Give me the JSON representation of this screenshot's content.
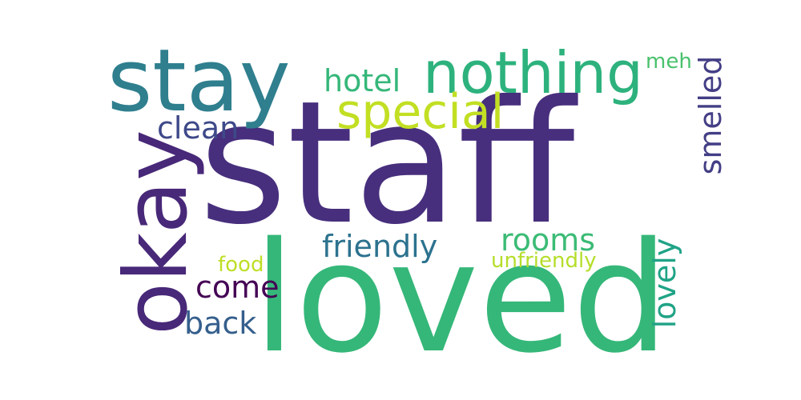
{
  "words": {
    "staff": {
      "text": "staff",
      "color": "#472f7d"
    },
    "loved": {
      "text": "loved",
      "color": "#35b779"
    },
    "stay": {
      "text": "stay",
      "color": "#2f7f8e"
    },
    "okay": {
      "text": "okay",
      "color": "#482878"
    },
    "nothing": {
      "text": "nothing",
      "color": "#2db27d"
    },
    "special": {
      "text": "special",
      "color": "#c2df23"
    },
    "hotel": {
      "text": "hotel",
      "color": "#35b779"
    },
    "meh": {
      "text": "meh",
      "color": "#4ac16d"
    },
    "smelled": {
      "text": "smelled",
      "color": "#433e85"
    },
    "clean": {
      "text": "clean",
      "color": "#3e4989"
    },
    "friendly": {
      "text": "friendly",
      "color": "#2c728e"
    },
    "rooms": {
      "text": "rooms",
      "color": "#3bbb75"
    },
    "unfriendly": {
      "text": "unfriendly",
      "color": "#b5de2b"
    },
    "food": {
      "text": "food",
      "color": "#bddf26"
    },
    "come": {
      "text": "come",
      "color": "#440154"
    },
    "back": {
      "text": "back",
      "color": "#355f8d"
    },
    "lovely": {
      "text": "lovely",
      "color": "#20a386"
    }
  }
}
